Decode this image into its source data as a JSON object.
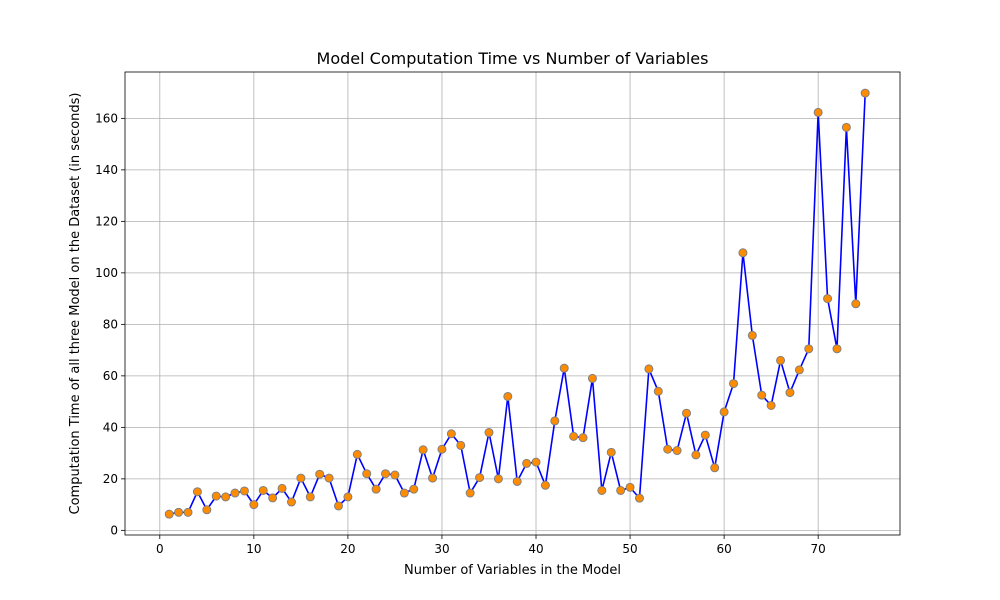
{
  "chart_data": {
    "type": "line",
    "title": "Model Computation Time vs Number of Variables",
    "xlabel": "Number of Variables in the Model",
    "ylabel": "Computation Time of all three Model on the Dataset (in seconds)",
    "xlim": [
      -3.7,
      78.7
    ],
    "ylim": [
      -1.8,
      178
    ],
    "xticks": [
      0,
      10,
      20,
      30,
      40,
      50,
      60,
      70
    ],
    "yticks": [
      0,
      20,
      40,
      60,
      80,
      100,
      120,
      140,
      160
    ],
    "grid": true,
    "line_color": "#0000ff",
    "marker_face_color": "#ff8c00",
    "marker_edge_color": "#808080",
    "series": [
      {
        "x": [
          1,
          2,
          3,
          4,
          5,
          6,
          7,
          8,
          9,
          10,
          11,
          12,
          13,
          14,
          15,
          16,
          17,
          18,
          19,
          20,
          21,
          22,
          23,
          24,
          25,
          26,
          27,
          28,
          29,
          30,
          31,
          32,
          33,
          34,
          35,
          36,
          37,
          38,
          39,
          40,
          41,
          42,
          43,
          44,
          45,
          46,
          47,
          48,
          49,
          50,
          51,
          52,
          53,
          54,
          55,
          56,
          57,
          58,
          59,
          60,
          61,
          62,
          63,
          64,
          65,
          66,
          67,
          68,
          69,
          70,
          71,
          72,
          73,
          74,
          75
        ],
        "y": [
          6.3,
          7,
          7,
          15,
          8,
          13.3,
          13,
          14.5,
          15.3,
          10,
          15.5,
          12.6,
          16.3,
          11,
          20.3,
          13,
          21.8,
          20.3,
          9.5,
          13,
          29.5,
          22,
          16,
          22,
          21.5,
          14.5,
          16,
          31.3,
          20.3,
          31.5,
          37.5,
          33,
          14.5,
          20.5,
          38,
          20,
          52,
          19,
          26,
          26.5,
          17.5,
          42.5,
          63,
          36.5,
          36,
          59,
          15.5,
          30.3,
          15.5,
          16.7,
          12.5,
          62.7,
          54,
          31.5,
          31,
          45.5,
          29.3,
          37,
          24.3,
          46,
          57,
          107.8,
          75.7,
          52.5,
          48.5,
          66,
          53.5,
          62.3,
          70.5,
          162.3,
          90,
          70.5,
          156.5,
          88,
          169.8
        ]
      }
    ]
  }
}
